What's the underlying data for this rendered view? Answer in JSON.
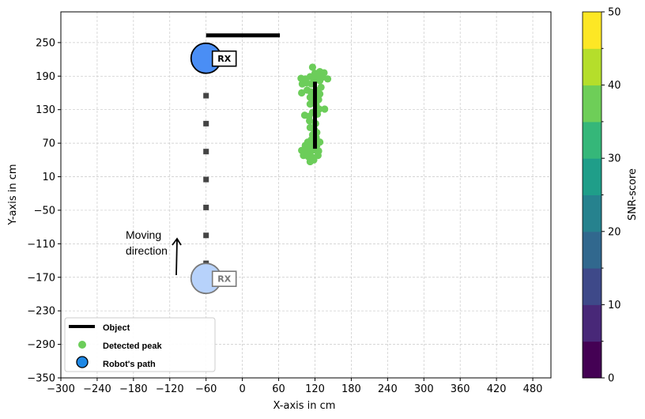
{
  "chart_data": {
    "type": "scatter",
    "xlabel": "X-axis in cm",
    "ylabel": "Y-axis in cm",
    "xlim": [
      -300,
      510
    ],
    "ylim": [
      -350,
      305
    ],
    "xticks": [
      -300,
      -240,
      -180,
      -120,
      -60,
      0,
      60,
      120,
      180,
      240,
      300,
      360,
      420,
      480
    ],
    "yticks": [
      -350,
      -290,
      -230,
      -170,
      -110,
      -50,
      10,
      70,
      130,
      190,
      250
    ],
    "grid": true,
    "object": {
      "name": "Object",
      "segments": [
        {
          "x": [
            -60,
            62
          ],
          "y": [
            263,
            263
          ]
        },
        {
          "x": [
            120,
            120
          ],
          "y": [
            60,
            180
          ]
        }
      ],
      "color": "#000000"
    },
    "detected_peaks": {
      "name": "Detected peak",
      "color": "#6ccd5a",
      "points": [
        [
          116,
          206
        ],
        [
          97,
          186
        ],
        [
          104,
          185
        ],
        [
          112,
          189
        ],
        [
          120,
          195
        ],
        [
          128,
          198
        ],
        [
          135,
          196
        ],
        [
          141,
          185
        ],
        [
          124,
          192
        ],
        [
          132,
          188
        ],
        [
          99,
          176
        ],
        [
          106,
          178
        ],
        [
          114,
          176
        ],
        [
          128,
          182
        ],
        [
          118,
          185
        ],
        [
          98,
          160
        ],
        [
          107,
          165
        ],
        [
          113,
          162
        ],
        [
          124,
          164
        ],
        [
          130,
          170
        ],
        [
          112,
          152
        ],
        [
          121,
          154
        ],
        [
          128,
          158
        ],
        [
          117,
          145
        ],
        [
          126,
          148
        ],
        [
          112,
          140
        ],
        [
          122,
          138
        ],
        [
          127,
          131
        ],
        [
          136,
          131
        ],
        [
          103,
          120
        ],
        [
          110,
          118
        ],
        [
          116,
          125
        ],
        [
          124,
          122
        ],
        [
          111,
          110
        ],
        [
          121,
          105
        ],
        [
          112,
          98
        ],
        [
          119,
          94
        ],
        [
          123,
          89
        ],
        [
          116,
          85
        ],
        [
          122,
          80
        ],
        [
          114,
          76
        ],
        [
          128,
          72
        ],
        [
          104,
          66
        ],
        [
          110,
          62
        ],
        [
          116,
          64
        ],
        [
          98,
          57
        ],
        [
          106,
          54
        ],
        [
          113,
          55
        ],
        [
          120,
          58
        ],
        [
          126,
          56
        ],
        [
          101,
          48
        ],
        [
          109,
          46
        ],
        [
          117,
          44
        ],
        [
          125,
          48
        ],
        [
          112,
          37
        ],
        [
          118,
          40
        ],
        [
          123,
          66
        ],
        [
          108,
          72
        ],
        [
          114,
          70
        ],
        [
          120,
          90
        ]
      ]
    },
    "robot_path": {
      "name": "Robot's path",
      "x": -60,
      "y_markers": [
        -145,
        -95,
        -45,
        5,
        55,
        105,
        155
      ],
      "start": {
        "x": -60,
        "y": -172,
        "label": "RX"
      },
      "end": {
        "x": -60,
        "y": 222,
        "label": "RX"
      }
    },
    "annotation": {
      "line1": "Moving",
      "line2": "direction"
    },
    "legend": {
      "placement": "lower-left",
      "entries": [
        "Object",
        "Detected peak",
        "Robot's path"
      ]
    },
    "colorbar": {
      "label": "SNR-score",
      "range": [
        0,
        50
      ],
      "ticks": [
        0,
        10,
        20,
        30,
        40,
        50
      ],
      "colors": [
        "#440154",
        "#482878",
        "#3e4989",
        "#31688e",
        "#26828e",
        "#1f9e89",
        "#35b779",
        "#6ece58",
        "#b5de2b",
        "#fde725"
      ]
    }
  }
}
